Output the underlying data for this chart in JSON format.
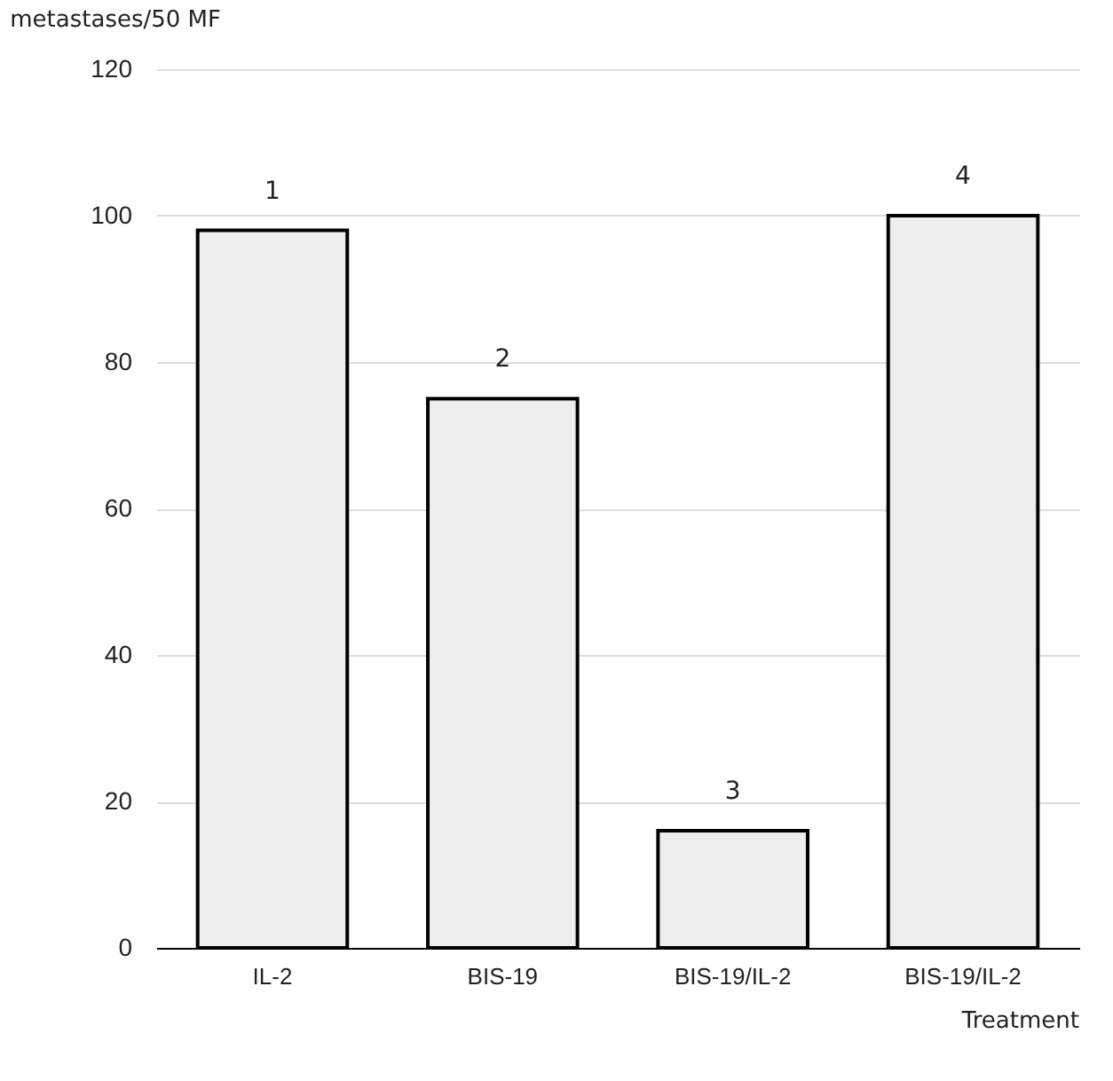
{
  "chart_data": {
    "type": "bar",
    "ylabel": "metastases/50 MF",
    "xlabel": "Treatment",
    "categories": [
      "IL-2",
      "BIS-19",
      "BIS-19/IL-2",
      "BIS-19/IL-2"
    ],
    "values": [
      98,
      75,
      16,
      100
    ],
    "color": "#eeeeee",
    "annotations": [
      "1",
      "2",
      "3",
      "4"
    ],
    "ylim": [
      0,
      120
    ],
    "yticks": [
      0,
      20,
      40,
      60,
      80,
      100,
      120
    ],
    "grid": "y"
  }
}
